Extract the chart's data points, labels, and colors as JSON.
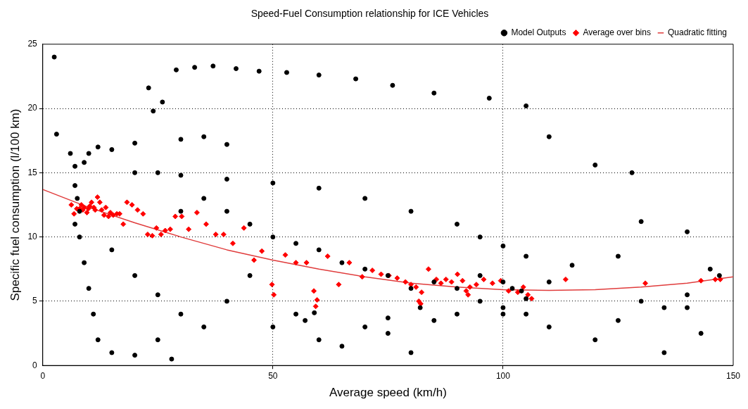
{
  "chart_data": {
    "type": "scatter",
    "title": "Speed-Fuel Consumption relationship for ICE Vehicles",
    "xlabel": "Average speed (km/h)",
    "ylabel": "Specific fuel consumption (l/100 km)",
    "xlim": [
      0,
      150
    ],
    "xticks": [
      0,
      50,
      100,
      150
    ],
    "ylim": [
      0,
      25
    ],
    "yticks": [
      0,
      5,
      10,
      15,
      20,
      25
    ],
    "grid": true,
    "legend": "top right",
    "line_style": "dotted",
    "series": [
      {
        "name": "Model Outputs",
        "type": "scatter",
        "marker": "circle",
        "color": "#000000",
        "x": [
          2.5,
          3,
          26,
          29,
          33,
          37,
          42,
          47,
          53,
          60,
          68,
          76,
          85,
          97,
          105,
          23,
          24,
          6,
          7,
          7,
          7.5,
          7,
          8,
          9,
          10,
          12,
          15,
          20,
          30,
          35,
          40,
          8,
          9,
          10,
          11,
          12,
          15,
          20,
          25,
          28,
          20,
          25,
          30,
          40,
          50,
          60,
          70,
          80,
          90,
          95,
          100,
          105,
          115,
          125,
          130,
          140,
          120,
          110,
          128,
          15,
          20,
          25,
          30,
          35,
          40,
          45,
          50,
          55,
          60,
          65,
          70,
          75,
          80,
          85,
          90,
          95,
          100,
          105,
          110,
          120,
          125,
          135,
          140,
          143,
          30,
          35,
          40,
          45,
          50,
          55,
          60,
          65,
          70,
          75,
          80,
          85,
          90,
          95,
          100,
          102,
          104,
          110,
          130,
          135,
          140,
          145,
          147,
          57,
          59,
          75,
          82,
          100,
          105
        ],
        "values": [
          24,
          18,
          20.5,
          23,
          23.2,
          23.3,
          23.1,
          22.9,
          22.8,
          22.6,
          22.3,
          21.8,
          21.2,
          20.8,
          20.2,
          21.6,
          19.8,
          16.5,
          15.5,
          14,
          13,
          11,
          12,
          15.8,
          16.5,
          17,
          16.8,
          17.3,
          17.6,
          17.8,
          17.2,
          10,
          8,
          6,
          4,
          2,
          1,
          0.8,
          2,
          0.5,
          15,
          15,
          14.8,
          14.5,
          14.2,
          13.8,
          13,
          12,
          11,
          10,
          9.3,
          8.5,
          7.8,
          8.5,
          11.2,
          10.4,
          15.6,
          17.8,
          15,
          9,
          7,
          5.5,
          4,
          3,
          5,
          7,
          3,
          4,
          2,
          1.5,
          3,
          2.5,
          1,
          3.5,
          4,
          5,
          4.5,
          4,
          3,
          2,
          3.5,
          1,
          4.5,
          2.5,
          12,
          13,
          12,
          11,
          10,
          9.5,
          9,
          8,
          7.5,
          7,
          6,
          6.5,
          6,
          7,
          6.5,
          6,
          5.8,
          6.5,
          5,
          4.5,
          5.5,
          7.5,
          7,
          3.5,
          4.1,
          3.7,
          4.5,
          4,
          5.2
        ]
      },
      {
        "name": "Average over bins",
        "type": "scatter",
        "marker": "diamond",
        "color": "#ff0000",
        "x": [
          6.2,
          6.8,
          7.4,
          7.8,
          8,
          8.4,
          8.7,
          9,
          9.6,
          9.9,
          10.2,
          10.6,
          11.1,
          11.4,
          11.9,
          12.4,
          12.8,
          13.3,
          13.7,
          14.3,
          14.7,
          15.3,
          16.1,
          16.7,
          17.5,
          18.3,
          19.4,
          20.6,
          21.8,
          22.8,
          23.8,
          24.7,
          25.7,
          26.6,
          27.7,
          28.8,
          30.2,
          31.7,
          33.5,
          35.5,
          37.6,
          39.3,
          41.3,
          43.7,
          45.9,
          47.6,
          49.8,
          50.2,
          52.7,
          55,
          57.3,
          58.9,
          59.6,
          59.3,
          61.9,
          64.3,
          66.6,
          69.4,
          71.6,
          73.5,
          75.2,
          77,
          78.8,
          80,
          81.1,
          82.3,
          81.7,
          82.1,
          83.8,
          85.5,
          86.5,
          87.6,
          88.8,
          90.1,
          91.2,
          92,
          92.4,
          92.8,
          94.2,
          95.8,
          97.7,
          99.5,
          101.2,
          103.2,
          104.4,
          105.4,
          106.2,
          113.6,
          130.9,
          143,
          146.1,
          147.2
        ],
        "values": [
          12.5,
          11.8,
          12.2,
          12.1,
          12.2,
          12.5,
          12.1,
          12.3,
          11.9,
          12.2,
          12.4,
          12.7,
          12.3,
          12.1,
          13.1,
          12.7,
          12.1,
          11.7,
          12.3,
          11.6,
          11.9,
          11.7,
          11.8,
          11.8,
          11,
          12.7,
          12.5,
          12.1,
          11.8,
          10.2,
          10.1,
          10.7,
          10.2,
          10.5,
          10.6,
          11.6,
          11.6,
          10.6,
          11.9,
          11,
          10.2,
          10.2,
          9.5,
          10.7,
          8.2,
          8.9,
          6.3,
          5.5,
          8.6,
          8,
          8,
          5.8,
          5.1,
          4.6,
          8.5,
          6.3,
          8,
          6.9,
          7.4,
          7.1,
          7,
          6.8,
          6.5,
          6.3,
          6.1,
          5.7,
          5,
          4.8,
          7.5,
          6.7,
          6.4,
          6.7,
          6.5,
          7.1,
          6.6,
          5.8,
          5.5,
          6.1,
          6.3,
          6.7,
          6.4,
          6.6,
          5.8,
          5.7,
          6.1,
          5.5,
          5.2,
          6.7,
          6.4,
          6.6,
          6.7,
          6.7
        ]
      },
      {
        "name": "Quadratic fitting",
        "type": "line",
        "marker": "none",
        "line_style": "solid",
        "color": "#e03c3c",
        "x": [
          0,
          10,
          20,
          30,
          40,
          50,
          60,
          70,
          80,
          90,
          100,
          110,
          120,
          130,
          140,
          150
        ],
        "values": [
          13.7,
          12.3,
          11.1,
          10,
          9,
          8.2,
          7.5,
          6.9,
          6.4,
          6.1,
          5.9,
          5.85,
          5.9,
          6.1,
          6.4,
          6.9
        ]
      }
    ]
  }
}
